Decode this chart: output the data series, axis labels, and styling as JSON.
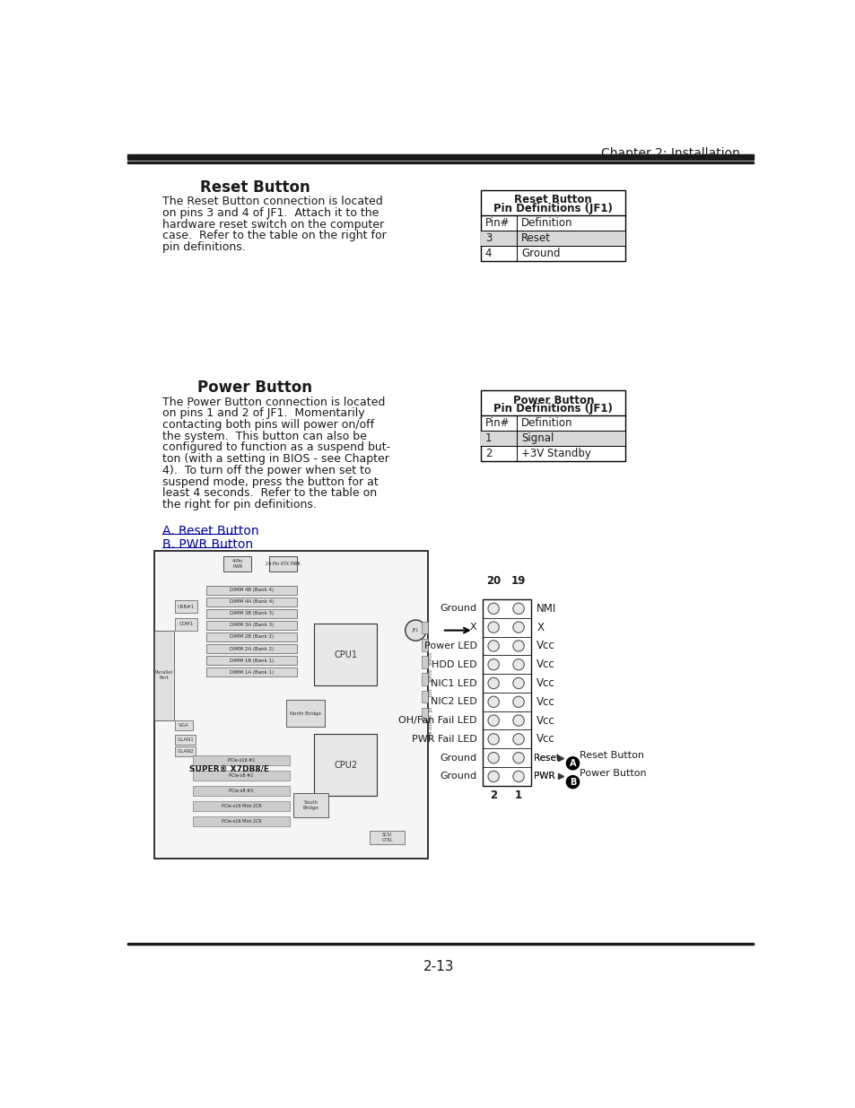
{
  "chapter_title": "Chapter 2: Installation",
  "page_number": "2-13",
  "reset_button_title": "Reset Button",
  "reset_button_body_lines": [
    "The Reset Button connection is located",
    "on pins 3 and 4 of JF1.  Attach it to the",
    "hardware reset switch on the computer",
    "case.  Refer to the table on the right for",
    "pin definitions."
  ],
  "reset_table_title1": "Reset Button",
  "reset_table_title2": "Pin Definitions (JF1)",
  "reset_table_headers": [
    "Pin#",
    "Definition"
  ],
  "reset_table_rows": [
    [
      "3",
      "Reset"
    ],
    [
      "4",
      "Ground"
    ]
  ],
  "reset_table_shaded": [
    0
  ],
  "power_button_title": "Power Button",
  "power_button_body_lines": [
    "The Power Button connection is located",
    "on pins 1 and 2 of JF1.  Momentarily",
    "contacting both pins will power on/off",
    "the system.  This button can also be",
    "configured to function as a suspend but-",
    "ton (with a setting in BIOS - see Chapter",
    "4).  To turn off the power when set to",
    "suspend mode, press the button for at",
    "least 4 seconds.  Refer to the table on",
    "the right for pin definitions."
  ],
  "power_table_title1": "Power Button",
  "power_table_title2": "Pin Definitions (JF1)",
  "power_table_headers": [
    "Pin#",
    "Definition"
  ],
  "power_table_rows": [
    [
      "1",
      "Signal"
    ],
    [
      "2",
      "+3V Standby"
    ]
  ],
  "power_table_shaded": [
    0
  ],
  "link_a": "A. Reset Button",
  "link_b": "B. PWR Button",
  "diagram_labels_left": [
    "Ground",
    "X",
    "Power LED",
    "HDD LED",
    "NIC1 LED",
    "NIC2 LED",
    "OH/Fan Fail LED",
    "PWR Fail LED",
    "Ground",
    "Ground"
  ],
  "diagram_labels_right_inner": [
    "",
    "",
    "",
    "",
    "",
    "",
    "",
    "",
    "Reset",
    "PWR"
  ],
  "diagram_labels_right_outer": [
    "NMI",
    "X",
    "Vcc",
    "Vcc",
    "Vcc",
    "Vcc",
    "Vcc",
    "Vcc",
    "Reset Button",
    "Power Button"
  ],
  "diagram_col20": "20",
  "diagram_col19": "19",
  "diagram_col2": "2",
  "diagram_col1": "1",
  "bg_color": "#ffffff",
  "table_border_color": "#000000",
  "table_shaded_color": "#d8d8d8",
  "text_color": "#1a1a1a",
  "header_bar_color": "#1a1a1a",
  "link_color": "#000099",
  "dimm_labels": [
    "DIMM 4B (Bank 4)",
    "DIMM 4A (Bank 4)",
    "DIMM 3B (Bank 3)",
    "DIMM 3A (Bank 3)",
    "DIMM 2B (Bank 2)",
    "DIMM 2A (Bank 2)",
    "DIMM 1B (Bank 1)",
    "DIMM 1A (Bank 1)"
  ]
}
